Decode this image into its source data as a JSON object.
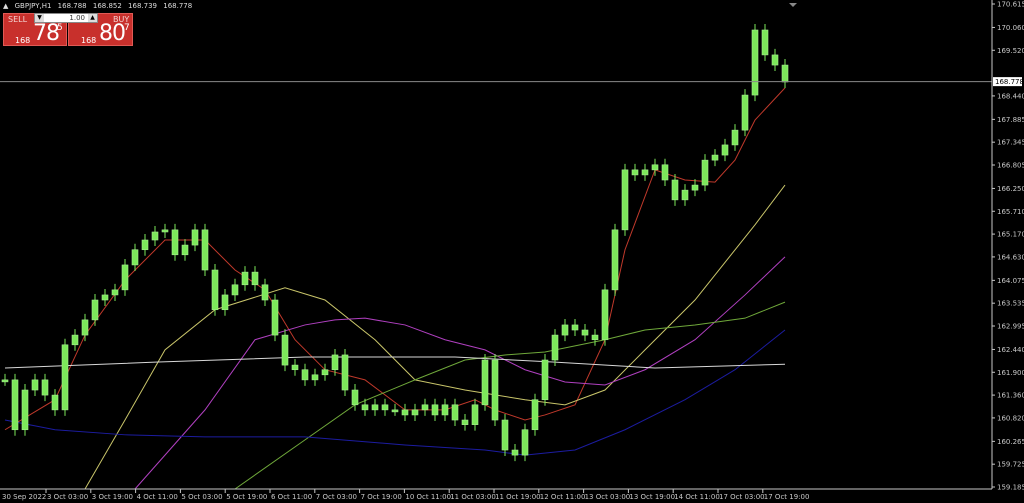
{
  "header": {
    "arrow_icon": "triangle-up-icon",
    "symbol": "GBPJPY,H1",
    "open": "168.788",
    "high": "168.852",
    "low": "168.739",
    "close": "168.778"
  },
  "trade_panel": {
    "sell_label": "SELL",
    "buy_label": "BUY",
    "lot_value": "1.00",
    "sell_price": {
      "prefix": "168",
      "big": "78",
      "sup": "5"
    },
    "buy_price": {
      "prefix": "168",
      "big": "80",
      "sup": "7"
    }
  },
  "colors": {
    "background": "#000000",
    "candle": "#7CE85A",
    "axis": "#c8c8c8",
    "panel_red": "#c8302c"
  },
  "chart_data": {
    "type": "candlestick",
    "symbol": "GBPJPY",
    "timeframe": "H1",
    "ylim": [
      159.185,
      170.615
    ],
    "grid": false,
    "current_price": "168.778",
    "y_ticks": [
      "170.615",
      "170.060",
      "169.520",
      "168.980",
      "168.440",
      "167.885",
      "167.345",
      "166.805",
      "166.250",
      "165.710",
      "165.170",
      "164.630",
      "164.075",
      "163.535",
      "162.995",
      "162.440",
      "161.900",
      "161.360",
      "160.820",
      "160.265",
      "159.725",
      "159.185"
    ],
    "x_ticks": [
      "30 Sep 2022",
      "3 Oct 03:00",
      "3 Oct 19:00",
      "4 Oct 11:00",
      "5 Oct 03:00",
      "5 Oct 19:00",
      "6 Oct 11:00",
      "7 Oct 03:00",
      "7 Oct 19:00",
      "10 Oct 11:00",
      "11 Oct 03:00",
      "11 Oct 19:00",
      "12 Oct 11:00",
      "13 Oct 03:00",
      "13 Oct 19:00",
      "14 Oct 11:00",
      "17 Oct 03:00",
      "17 Oct 19:00"
    ],
    "closes": [
      161.72,
      160.54,
      161.48,
      161.72,
      161.36,
      161.01,
      162.55,
      162.78,
      163.14,
      163.61,
      163.73,
      163.85,
      164.44,
      164.8,
      165.03,
      165.22,
      165.27,
      164.68,
      164.91,
      165.27,
      164.32,
      163.38,
      163.73,
      163.97,
      164.27,
      163.97,
      163.61,
      162.78,
      162.07,
      161.96,
      161.72,
      161.84,
      161.96,
      162.31,
      161.48,
      161.13,
      161.01,
      161.13,
      161.01,
      161.01,
      160.89,
      161.01,
      161.13,
      160.89,
      161.13,
      160.77,
      160.66,
      161.13,
      162.19,
      160.77,
      160.06,
      159.94,
      160.54,
      161.25,
      162.19,
      162.78,
      163.02,
      162.9,
      162.78,
      162.67,
      163.85,
      165.27,
      166.69,
      166.57,
      166.69,
      166.81,
      166.45,
      165.98,
      166.21,
      166.33,
      166.92,
      167.04,
      167.28,
      167.63,
      168.46,
      170.0,
      169.41,
      169.17,
      168.77
    ],
    "moving_averages": [
      {
        "color": "#c0392b",
        "points": [
          [
            0,
            160.54
          ],
          [
            5,
            161.25
          ],
          [
            8,
            162.78
          ],
          [
            12,
            164.08
          ],
          [
            16,
            165.03
          ],
          [
            20,
            165.03
          ],
          [
            23,
            164.32
          ],
          [
            26,
            163.85
          ],
          [
            29,
            162.67
          ],
          [
            32,
            161.96
          ],
          [
            36,
            161.72
          ],
          [
            40,
            161.01
          ],
          [
            44,
            161.01
          ],
          [
            47,
            161.25
          ],
          [
            49,
            161.01
          ],
          [
            52,
            160.77
          ],
          [
            54,
            160.89
          ],
          [
            57,
            161.13
          ],
          [
            60,
            162.67
          ],
          [
            62,
            164.8
          ],
          [
            65,
            166.69
          ],
          [
            68,
            166.45
          ],
          [
            71,
            166.4
          ],
          [
            73,
            166.92
          ],
          [
            75,
            167.87
          ],
          [
            78,
            168.63
          ]
        ]
      },
      {
        "color": "#c9c56a",
        "points": [
          [
            8,
            159.12
          ],
          [
            12,
            160.77
          ],
          [
            16,
            162.43
          ],
          [
            21,
            163.38
          ],
          [
            28,
            163.9
          ],
          [
            32,
            163.61
          ],
          [
            37,
            162.67
          ],
          [
            41,
            161.72
          ],
          [
            46,
            161.48
          ],
          [
            52,
            161.25
          ],
          [
            56,
            161.13
          ],
          [
            60,
            161.48
          ],
          [
            64,
            162.43
          ],
          [
            69,
            163.61
          ],
          [
            75,
            165.39
          ],
          [
            78,
            166.33
          ]
        ]
      },
      {
        "color": "#b040c0",
        "points": [
          [
            13,
            159.12
          ],
          [
            20,
            161.01
          ],
          [
            25,
            162.67
          ],
          [
            30,
            163.02
          ],
          [
            33,
            163.14
          ],
          [
            36,
            163.18
          ],
          [
            40,
            163.02
          ],
          [
            44,
            162.67
          ],
          [
            48,
            162.43
          ],
          [
            52,
            161.96
          ],
          [
            56,
            161.67
          ],
          [
            60,
            161.6
          ],
          [
            64,
            161.96
          ],
          [
            69,
            162.67
          ],
          [
            74,
            163.73
          ],
          [
            78,
            164.63
          ]
        ]
      },
      {
        "color": "#6fa83a",
        "points": [
          [
            23,
            159.12
          ],
          [
            30,
            160.3
          ],
          [
            35,
            161.13
          ],
          [
            41,
            161.72
          ],
          [
            46,
            162.19
          ],
          [
            50,
            162.31
          ],
          [
            54,
            162.38
          ],
          [
            60,
            162.67
          ],
          [
            64,
            162.9
          ],
          [
            69,
            163.02
          ],
          [
            74,
            163.18
          ],
          [
            78,
            163.56
          ]
        ]
      },
      {
        "color": "#1c1ca0",
        "points": [
          [
            0,
            160.77
          ],
          [
            5,
            160.54
          ],
          [
            12,
            160.42
          ],
          [
            20,
            160.37
          ],
          [
            30,
            160.37
          ],
          [
            40,
            160.18
          ],
          [
            48,
            160.06
          ],
          [
            52,
            159.94
          ],
          [
            57,
            160.06
          ],
          [
            62,
            160.54
          ],
          [
            68,
            161.25
          ],
          [
            73,
            161.96
          ],
          [
            78,
            162.9
          ]
        ]
      },
      {
        "color": "#d8d8d8",
        "points": [
          [
            0,
            162.0
          ],
          [
            15,
            162.14
          ],
          [
            30,
            162.26
          ],
          [
            45,
            162.26
          ],
          [
            55,
            162.14
          ],
          [
            65,
            162.0
          ],
          [
            78,
            162.09
          ]
        ]
      }
    ]
  }
}
